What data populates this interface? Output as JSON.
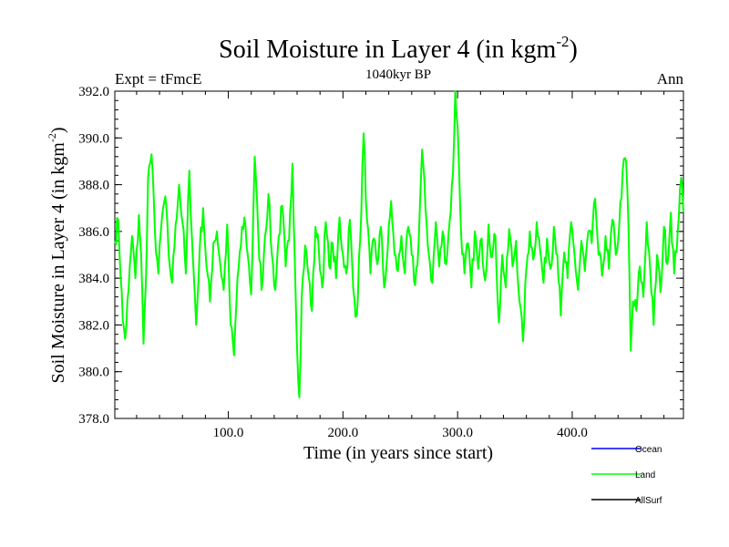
{
  "chart_data": {
    "type": "line",
    "title": "Soil Moisture in Layer 4 (in kgm",
    "title_sup": "-2",
    "title_close": ")",
    "subtitle_left": "Expt = tFmcE",
    "subtitle_center": "1040kyr BP",
    "subtitle_right": "Ann",
    "xlabel": "Time (in years since start)",
    "ylabel": "Soil Moisture in Layer 4 (in kgm",
    "ylabel_sup": "-2",
    "ylabel_close": ")",
    "xlim": [
      1,
      497
    ],
    "ylim": [
      378.0,
      392.0
    ],
    "xticks": [
      100.0,
      200.0,
      300.0,
      400.0
    ],
    "xtick_labels": [
      "100.0",
      "200.0",
      "300.0",
      "400.0"
    ],
    "yticks": [
      378.0,
      380.0,
      382.0,
      384.0,
      386.0,
      388.0,
      390.0,
      392.0
    ],
    "ytick_labels": [
      "378.0",
      "380.0",
      "382.0",
      "384.0",
      "386.0",
      "388.0",
      "390.0",
      "392.0"
    ],
    "legend_position": "bottom-right",
    "series": [
      {
        "name": "Land",
        "color": "#00ff00",
        "keypoints": [
          [
            1,
            385.6
          ],
          [
            4,
            386.5
          ],
          [
            8,
            382.2
          ],
          [
            10,
            381.4
          ],
          [
            13,
            383.5
          ],
          [
            16,
            385.8
          ],
          [
            19,
            384.0
          ],
          [
            22,
            386.7
          ],
          [
            24,
            385.0
          ],
          [
            26,
            381.2
          ],
          [
            28,
            383.7
          ],
          [
            30,
            388.3
          ],
          [
            33,
            389.3
          ],
          [
            36,
            386.0
          ],
          [
            39,
            384.2
          ],
          [
            42,
            386.5
          ],
          [
            45,
            387.5
          ],
          [
            48,
            385.0
          ],
          [
            51,
            383.8
          ],
          [
            54,
            386.3
          ],
          [
            57,
            388.0
          ],
          [
            60,
            386.4
          ],
          [
            63,
            384.2
          ],
          [
            66,
            388.6
          ],
          [
            69,
            385.0
          ],
          [
            72,
            382.0
          ],
          [
            75,
            385.2
          ],
          [
            78,
            387.0
          ],
          [
            81,
            384.5
          ],
          [
            84,
            383.0
          ],
          [
            87,
            385.5
          ],
          [
            90,
            386.0
          ],
          [
            93,
            384.6
          ],
          [
            96,
            383.5
          ],
          [
            99,
            386.3
          ],
          [
            102,
            382.0
          ],
          [
            105,
            380.7
          ],
          [
            108,
            384.0
          ],
          [
            111,
            385.4
          ],
          [
            114,
            386.6
          ],
          [
            117,
            385.0
          ],
          [
            120,
            383.3
          ],
          [
            123,
            389.2
          ],
          [
            126,
            386.0
          ],
          [
            129,
            383.5
          ],
          [
            132,
            385.8
          ],
          [
            135,
            387.6
          ],
          [
            138,
            385.0
          ],
          [
            141,
            383.5
          ],
          [
            144,
            385.8
          ],
          [
            147,
            387.1
          ],
          [
            150,
            384.5
          ],
          [
            153,
            385.6
          ],
          [
            156,
            388.9
          ],
          [
            158,
            384.8
          ],
          [
            160,
            381.0
          ],
          [
            162,
            378.9
          ],
          [
            164,
            383.2
          ],
          [
            167,
            385.4
          ],
          [
            170,
            384.1
          ],
          [
            173,
            382.6
          ],
          [
            176,
            386.2
          ],
          [
            179,
            385.2
          ],
          [
            182,
            383.6
          ],
          [
            185,
            386.4
          ],
          [
            188,
            384.5
          ],
          [
            191,
            385.5
          ],
          [
            194,
            384.0
          ],
          [
            197,
            386.6
          ],
          [
            200,
            385.0
          ],
          [
            203,
            384.2
          ],
          [
            206,
            386.5
          ],
          [
            209,
            383.5
          ],
          [
            212,
            382.4
          ],
          [
            215,
            385.6
          ],
          [
            218,
            390.2
          ],
          [
            221,
            386.5
          ],
          [
            224,
            384.2
          ],
          [
            227,
            385.7
          ],
          [
            230,
            384.6
          ],
          [
            233,
            386.2
          ],
          [
            236,
            383.6
          ],
          [
            239,
            385.2
          ],
          [
            242,
            387.3
          ],
          [
            245,
            385.0
          ],
          [
            248,
            384.3
          ],
          [
            251,
            385.8
          ],
          [
            254,
            384.2
          ],
          [
            257,
            386.2
          ],
          [
            260,
            385.0
          ],
          [
            263,
            383.7
          ],
          [
            266,
            385.5
          ],
          [
            269,
            389.5
          ],
          [
            272,
            387.0
          ],
          [
            275,
            385.0
          ],
          [
            278,
            383.8
          ],
          [
            281,
            386.4
          ],
          [
            284,
            384.5
          ],
          [
            287,
            386.0
          ],
          [
            290,
            384.6
          ],
          [
            293,
            386.4
          ],
          [
            296,
            388.5
          ],
          [
            298,
            392.0
          ],
          [
            300,
            390.5
          ],
          [
            303,
            386.0
          ],
          [
            306,
            384.2
          ],
          [
            309,
            385.5
          ],
          [
            312,
            383.6
          ],
          [
            315,
            386.0
          ],
          [
            318,
            384.4
          ],
          [
            321,
            385.7
          ],
          [
            324,
            383.9
          ],
          [
            327,
            386.3
          ],
          [
            330,
            384.9
          ],
          [
            333,
            385.8
          ],
          [
            336,
            382.1
          ],
          [
            339,
            385.0
          ],
          [
            342,
            383.6
          ],
          [
            345,
            386.1
          ],
          [
            348,
            384.5
          ],
          [
            351,
            385.6
          ],
          [
            354,
            383.0
          ],
          [
            357,
            381.3
          ],
          [
            360,
            384.4
          ],
          [
            363,
            386.0
          ],
          [
            366,
            384.8
          ],
          [
            369,
            386.4
          ],
          [
            372,
            385.2
          ],
          [
            375,
            383.8
          ],
          [
            378,
            385.7
          ],
          [
            381,
            384.4
          ],
          [
            384,
            386.2
          ],
          [
            387,
            385.0
          ],
          [
            390,
            382.4
          ],
          [
            393,
            385.1
          ],
          [
            396,
            384.0
          ],
          [
            399,
            386.4
          ],
          [
            402,
            385.0
          ],
          [
            405,
            383.5
          ],
          [
            408,
            385.6
          ],
          [
            411,
            384.3
          ],
          [
            414,
            386.0
          ],
          [
            417,
            385.5
          ],
          [
            420,
            387.4
          ],
          [
            423,
            385.0
          ],
          [
            426,
            384.1
          ],
          [
            429,
            385.8
          ],
          [
            432,
            384.4
          ],
          [
            435,
            386.5
          ],
          [
            438,
            385.0
          ],
          [
            441,
            386.2
          ],
          [
            444,
            388.6
          ],
          [
            447,
            389.0
          ],
          [
            449,
            386.4
          ],
          [
            451,
            380.9
          ],
          [
            453,
            383.0
          ],
          [
            456,
            382.6
          ],
          [
            459,
            384.5
          ],
          [
            462,
            383.2
          ],
          [
            465,
            386.4
          ],
          [
            468,
            384.4
          ],
          [
            471,
            382.0
          ],
          [
            474,
            385.0
          ],
          [
            477,
            383.4
          ],
          [
            480,
            386.2
          ],
          [
            483,
            384.6
          ],
          [
            486,
            386.8
          ],
          [
            489,
            384.2
          ],
          [
            492,
            386.0
          ],
          [
            494,
            387.8
          ],
          [
            496,
            388.0
          ],
          [
            497,
            386.8
          ]
        ]
      }
    ],
    "legend": [
      {
        "label": "Ocean",
        "color": "#0000ff"
      },
      {
        "label": "Land",
        "color": "#00ff00"
      },
      {
        "label": "AllSurf",
        "color": "#000000"
      }
    ]
  }
}
